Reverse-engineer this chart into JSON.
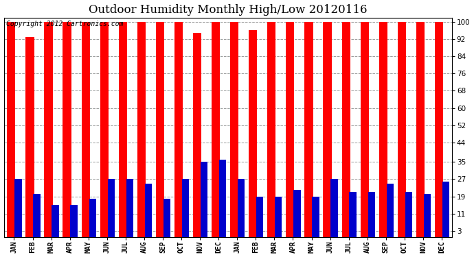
{
  "title": "Outdoor Humidity Monthly High/Low 20120116",
  "copyright": "Copyright 2012 Cartronics.com",
  "months": [
    "JAN",
    "FEB",
    "MAR",
    "APR",
    "MAY",
    "JUN",
    "JUL",
    "AUG",
    "SEP",
    "OCT",
    "NOV",
    "DEC",
    "JAN",
    "FEB",
    "MAR",
    "APR",
    "MAY",
    "JUN",
    "JUL",
    "AUG",
    "SEP",
    "OCT",
    "NOV",
    "DEC"
  ],
  "high_values": [
    100,
    93,
    100,
    100,
    100,
    100,
    100,
    100,
    100,
    100,
    95,
    100,
    100,
    96,
    100,
    100,
    100,
    100,
    100,
    100,
    100,
    100,
    100,
    100
  ],
  "low_values": [
    27,
    20,
    15,
    15,
    18,
    27,
    27,
    25,
    18,
    27,
    35,
    36,
    27,
    19,
    19,
    22,
    19,
    27,
    21,
    21,
    25,
    21,
    20,
    26
  ],
  "high_color": "#ff0000",
  "low_color": "#0000cc",
  "bg_color": "#ffffff",
  "grid_color": "#999999",
  "yticks": [
    3,
    11,
    19,
    27,
    35,
    44,
    52,
    60,
    68,
    76,
    84,
    92,
    100
  ],
  "ylim": [
    0,
    102
  ],
  "title_fontsize": 12,
  "copyright_fontsize": 7,
  "tick_fontsize": 7.5,
  "xtick_fontsize": 7
}
